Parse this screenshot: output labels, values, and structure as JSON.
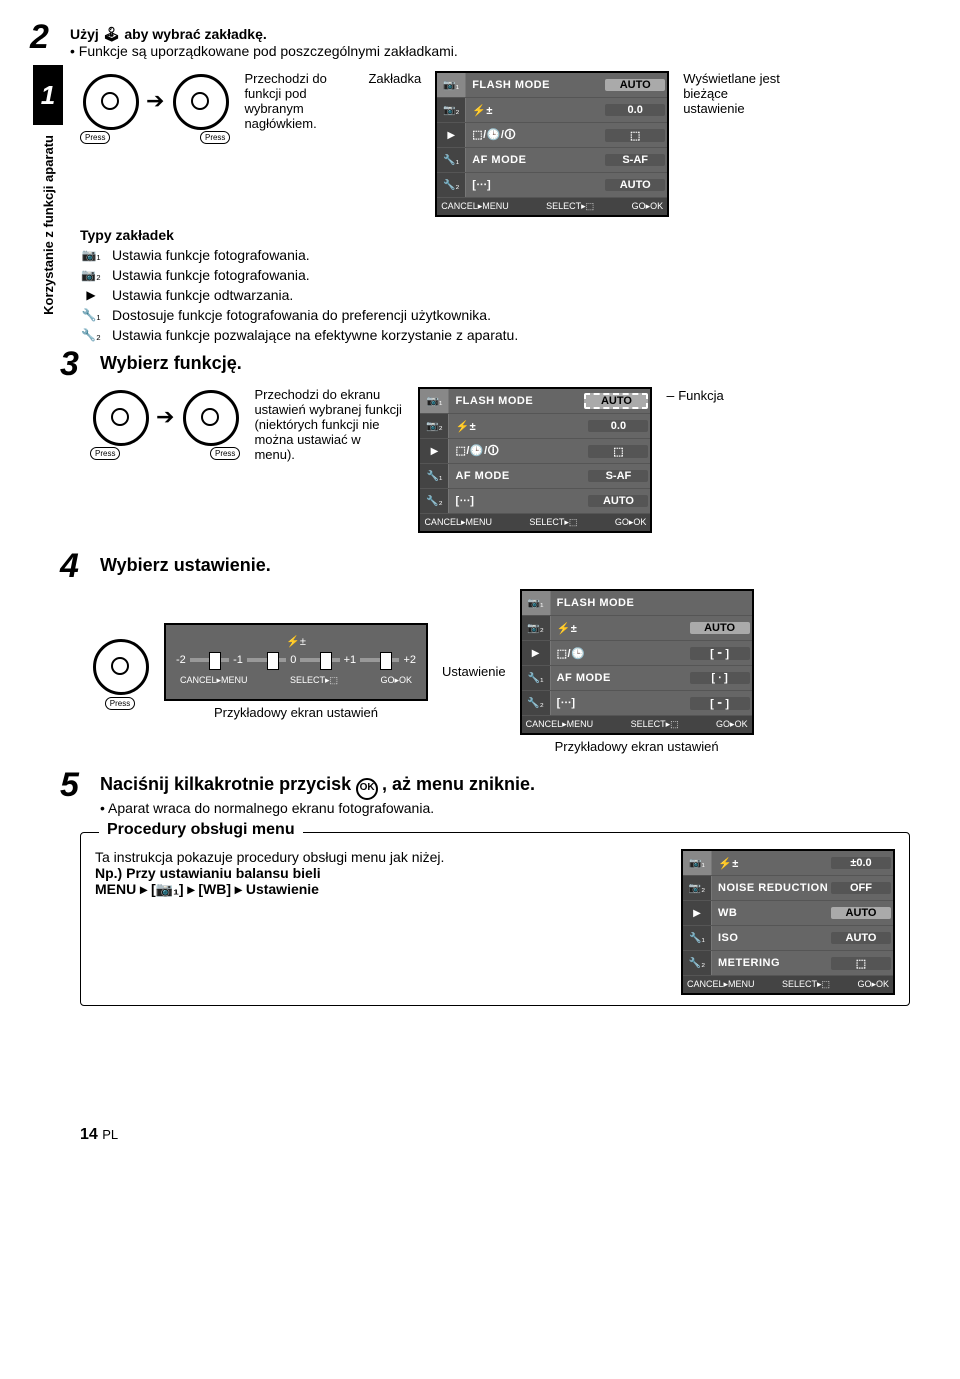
{
  "step2": {
    "title": "Użyj 🕹 aby wybrać zakładkę.",
    "note": "Funkcje są uporządkowane pod poszczególnymi zakładkami."
  },
  "sidebar_label": "Korzystanie z funkcji aparatu",
  "step1_arrow_label": "Przechodzi do funkcji pod wybranym nagłówkiem.",
  "tab_label": "Zakładka",
  "current_label": "Wyświetlane jest bieżące ustawienie",
  "tabs_header": "Typy zakładek",
  "tabs": [
    {
      "icon": "📷₁",
      "text": "Ustawia funkcje fotografowania."
    },
    {
      "icon": "📷₂",
      "text": "Ustawia funkcje fotografowania."
    },
    {
      "icon": "▶",
      "text": "Ustawia funkcje odtwarzania."
    },
    {
      "icon": "🔧₁",
      "text": "Dostosuje funkcje fotografowania do preferencji użytkownika."
    },
    {
      "icon": "🔧₂",
      "text": "Ustawia funkcje pozwalające na efektywne korzystanie z aparatu."
    }
  ],
  "step3": {
    "title": "Wybierz funkcję.",
    "desc": "Przechodzi do ekranu ustawień wybranej funkcji (niektórych funkcji nie można ustawiać w menu).",
    "callout": "Funkcja"
  },
  "step4": {
    "title": "Wybierz ustawienie.",
    "setting_label": "Ustawienie",
    "caption": "Przykładowy ekran ustawień"
  },
  "step5": {
    "title_a": "Naciśnij kilkakrotnie przycisk ",
    "title_b": ", aż menu zniknie.",
    "note": "Aparat wraca do normalnego ekranu fotografowania."
  },
  "proc": {
    "title": "Procedury obsługi menu",
    "text": "Ta instrukcja pokazuje procedury obsługi menu jak niżej.",
    "eg_label": "Np.) Przy ustawianiu balansu bieli",
    "path": "MENU ▸ [📷₁] ▸ [WB] ▸ Ustawienie"
  },
  "lcd1": {
    "rows": [
      {
        "t": "📷₁",
        "l": "FLASH MODE",
        "v": "AUTO",
        "hi": true
      },
      {
        "t": "📷₂",
        "l": "⚡±",
        "v": "0.0"
      },
      {
        "t": "▶",
        "l": "⬚/🕒/🛈",
        "v": "⬚"
      },
      {
        "t": "🔧₁",
        "l": "AF MODE",
        "v": "S-AF"
      },
      {
        "t": "🔧₂",
        "l": "[∙∙∙]",
        "v": "AUTO"
      }
    ],
    "foot": {
      "c": "CANCEL▸MENU",
      "s": "SELECT▸⬚",
      "g": "GO▸OK"
    }
  },
  "lcd_proc": {
    "rows": [
      {
        "t": "📷₁",
        "l": "⚡±",
        "v": "±0.0"
      },
      {
        "t": "📷₂",
        "l": "NOISE REDUCTION",
        "v": "OFF"
      },
      {
        "t": "▶",
        "l": "WB",
        "v": "AUTO",
        "hi": true
      },
      {
        "t": "🔧₁",
        "l": "ISO",
        "v": "AUTO"
      },
      {
        "t": "🔧₂",
        "l": "METERING",
        "v": "⬚"
      }
    ]
  },
  "slider": {
    "header": "⚡±",
    "ticks": [
      "-2",
      "-1",
      "0",
      "+1",
      "+2"
    ]
  },
  "lcd4": {
    "rows": [
      {
        "t": "📷₁",
        "l": "FLASH MODE",
        "v": ""
      },
      {
        "t": "📷₂",
        "l": "⚡±",
        "v": "AUTO",
        "hi": true
      },
      {
        "t": "▶",
        "l": "⬚/🕒",
        "v": "[ ⁃ ]"
      },
      {
        "t": "🔧₁",
        "l": "AF MODE",
        "v": "[ ∙ ]"
      },
      {
        "t": "🔧₂",
        "l": "[∙∙∙]",
        "v": "[ ⁃ ]"
      }
    ]
  },
  "page_num": "14",
  "page_lang": "PL"
}
